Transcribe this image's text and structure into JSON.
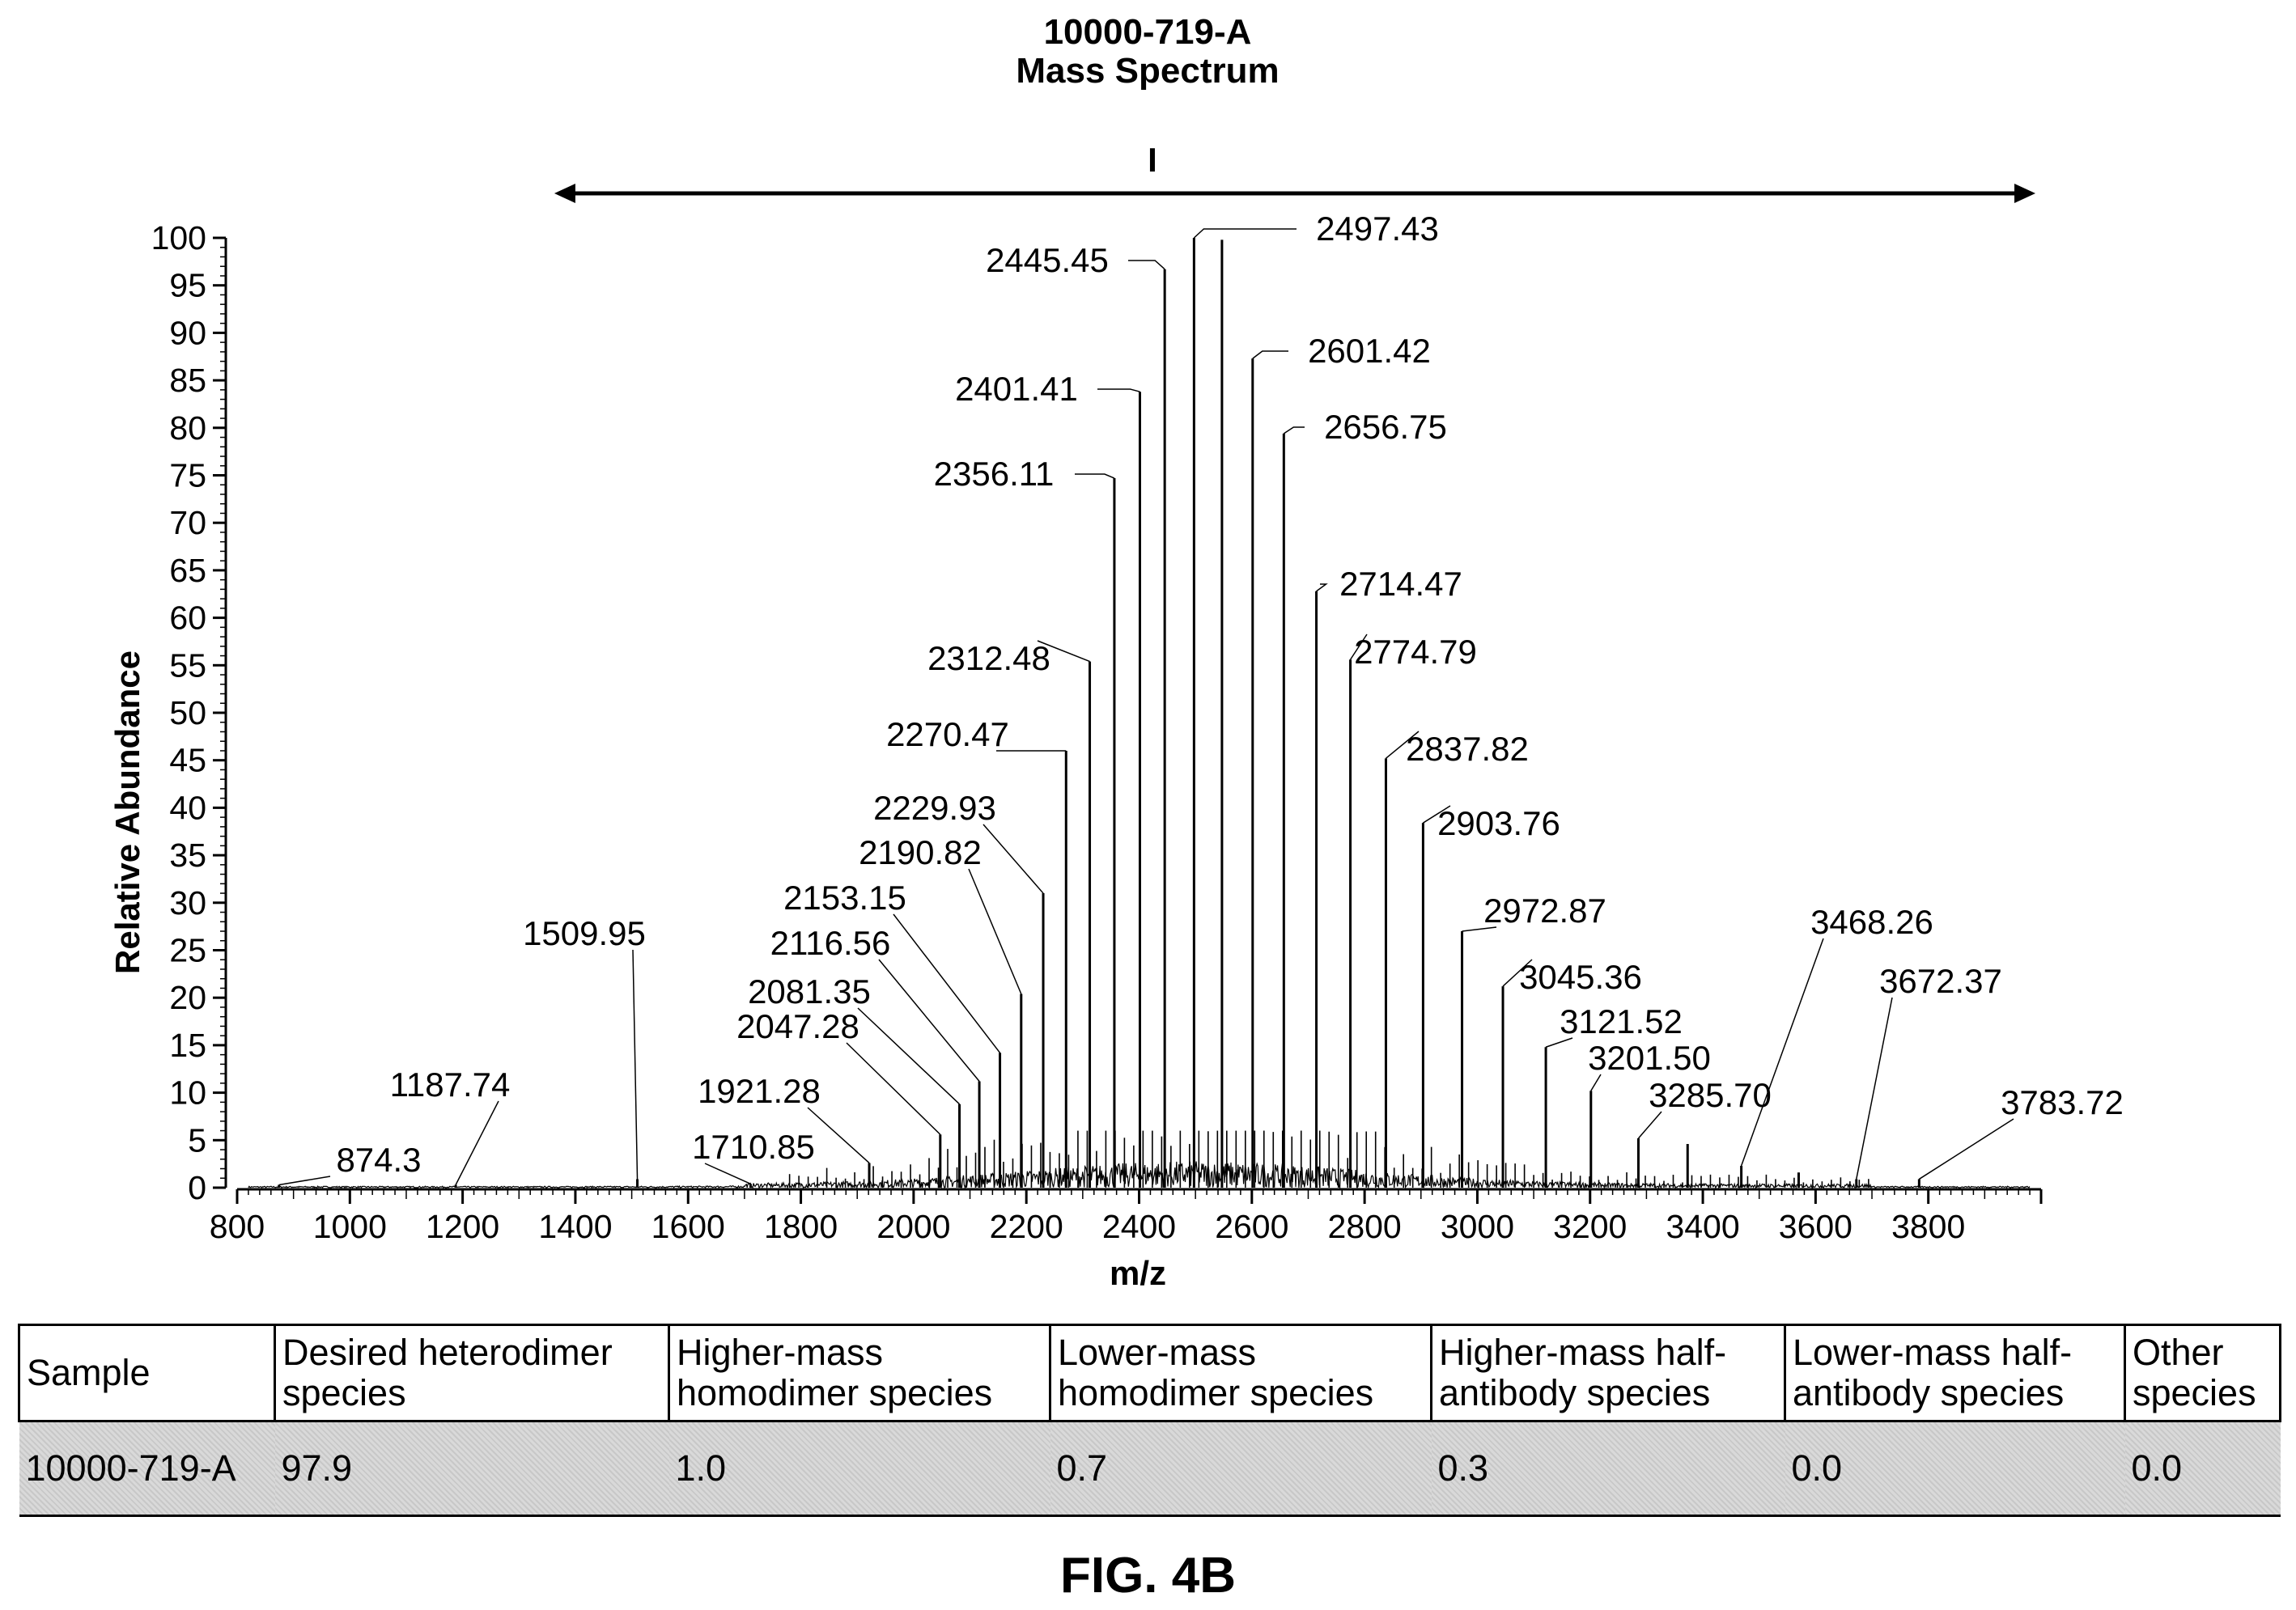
{
  "chart_data": {
    "type": "line",
    "title": "10000-719-A",
    "subtitle": "Mass Spectrum",
    "bracket_label": "I",
    "xlabel": "m/z",
    "ylabel": "Relative Abundance",
    "xlim": [
      800,
      4000
    ],
    "ylim": [
      0,
      100
    ],
    "x_ticks": [
      800,
      1000,
      1200,
      1400,
      1600,
      1800,
      2000,
      2200,
      2400,
      2600,
      2800,
      3000,
      3200,
      3400,
      3600,
      3800
    ],
    "y_ticks": [
      0,
      5,
      10,
      15,
      20,
      25,
      30,
      35,
      40,
      45,
      50,
      55,
      60,
      65,
      70,
      75,
      80,
      85,
      90,
      95,
      100
    ],
    "grid": false,
    "legend": "none",
    "bracket_range": [
      1400,
      3990
    ],
    "bracket_tick_x": 2400,
    "labeled_peaks": [
      {
        "label": "874.3",
        "x": 874.3,
        "y": 0.3
      },
      {
        "label": "1187.74",
        "x": 1187.74,
        "y": 0.3
      },
      {
        "label": "1509.95",
        "x": 1509.95,
        "y": 0.9
      },
      {
        "label": "1710.85",
        "x": 1710.85,
        "y": 0.4
      },
      {
        "label": "1921.28",
        "x": 1921.28,
        "y": 2.6
      },
      {
        "label": "2047.28",
        "x": 2047.28,
        "y": 5.6
      },
      {
        "label": "2081.35",
        "x": 2081.35,
        "y": 8.8
      },
      {
        "label": "2116.56",
        "x": 2116.56,
        "y": 11.2
      },
      {
        "label": "2153.15",
        "x": 2153.15,
        "y": 14.2
      },
      {
        "label": "2190.82",
        "x": 2190.82,
        "y": 20.4
      },
      {
        "label": "2229.93",
        "x": 2229.93,
        "y": 31.0
      },
      {
        "label": "2270.47",
        "x": 2270.47,
        "y": 46.0
      },
      {
        "label": "2312.48",
        "x": 2312.48,
        "y": 55.4
      },
      {
        "label": "2356.11",
        "x": 2356.11,
        "y": 74.7
      },
      {
        "label": "2401.41",
        "x": 2401.41,
        "y": 83.8
      },
      {
        "label": "2445.45",
        "x": 2445.45,
        "y": 96.7
      },
      {
        "label": "2497.43",
        "x": 2497.43,
        "y": 100.0
      },
      {
        "label": "2547",
        "x": 2547.0,
        "y": 99.8,
        "show_label": false
      },
      {
        "label": "2601.42",
        "x": 2601.42,
        "y": 87.3
      },
      {
        "label": "2656.75",
        "x": 2656.75,
        "y": 79.4
      },
      {
        "label": "2714.47",
        "x": 2714.47,
        "y": 62.8
      },
      {
        "label": "2774.79",
        "x": 2774.79,
        "y": 55.6
      },
      {
        "label": "2837.82",
        "x": 2837.82,
        "y": 45.2
      },
      {
        "label": "2903.76",
        "x": 2903.76,
        "y": 38.4
      },
      {
        "label": "2972.87",
        "x": 2972.87,
        "y": 27.0
      },
      {
        "label": "3045.36",
        "x": 3045.36,
        "y": 21.2
      },
      {
        "label": "3121.52",
        "x": 3121.52,
        "y": 14.8
      },
      {
        "label": "3201.50",
        "x": 3201.5,
        "y": 10.2
      },
      {
        "label": "3285.70",
        "x": 3285.7,
        "y": 5.2
      },
      {
        "label": "3373",
        "x": 3373.0,
        "y": 4.6,
        "show_label": false
      },
      {
        "label": "3468.26",
        "x": 3468.26,
        "y": 2.3
      },
      {
        "label": "3570",
        "x": 3570.0,
        "y": 1.6,
        "show_label": false
      },
      {
        "label": "3672.37",
        "x": 3672.37,
        "y": 0.9
      },
      {
        "label": "3783.72",
        "x": 3783.72,
        "y": 0.9
      }
    ]
  },
  "table": {
    "headers": [
      "Sample",
      "Desired heterodimer species",
      "Higher-mass homodimer species",
      "Lower-mass homodimer species",
      "Higher-mass half-antibody species",
      "Lower-mass half-antibody species",
      "Other species"
    ],
    "rows": [
      [
        "10000-719-A",
        "97.9",
        "1.0",
        "0.7",
        "0.3",
        "0.0",
        "0.0"
      ]
    ]
  },
  "figure_label": "FIG. 4B"
}
